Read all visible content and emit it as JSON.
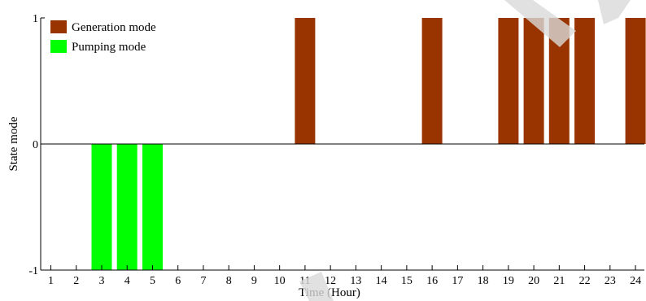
{
  "chart_data": {
    "type": "bar",
    "title": "",
    "xlabel": "Time (Hour)",
    "ylabel": "State mode",
    "categories": [
      "1",
      "2",
      "3",
      "4",
      "5",
      "6",
      "7",
      "8",
      "9",
      "10",
      "11",
      "12",
      "13",
      "14",
      "15",
      "16",
      "17",
      "18",
      "19",
      "20",
      "21",
      "22",
      "23",
      "24"
    ],
    "x": [
      1,
      2,
      3,
      4,
      5,
      6,
      7,
      8,
      9,
      10,
      11,
      12,
      13,
      14,
      15,
      16,
      17,
      18,
      19,
      20,
      21,
      22,
      23,
      24
    ],
    "ylim": [
      -1,
      1
    ],
    "xlim": [
      0.6,
      24.35
    ],
    "yticks": [
      {
        "value": 1,
        "label": "1"
      },
      {
        "value": 0,
        "label": "0"
      },
      {
        "value": -1,
        "label": "-1"
      }
    ],
    "series": [
      {
        "name": "Generation mode",
        "color": "#993300",
        "values": [
          0,
          0,
          0,
          0,
          0,
          0,
          0,
          0,
          0,
          0,
          1,
          0,
          0,
          0,
          0,
          1,
          0,
          0,
          1,
          1,
          1,
          1,
          0,
          1
        ]
      },
      {
        "name": "Pumping mode",
        "color": "#00ff00",
        "values": [
          0,
          0,
          -1,
          -1,
          -1,
          0,
          0,
          0,
          0,
          0,
          0,
          0,
          0,
          0,
          0,
          0,
          0,
          0,
          0,
          0,
          0,
          0,
          0,
          0
        ]
      }
    ],
    "grid": false,
    "legend": "top-left"
  }
}
